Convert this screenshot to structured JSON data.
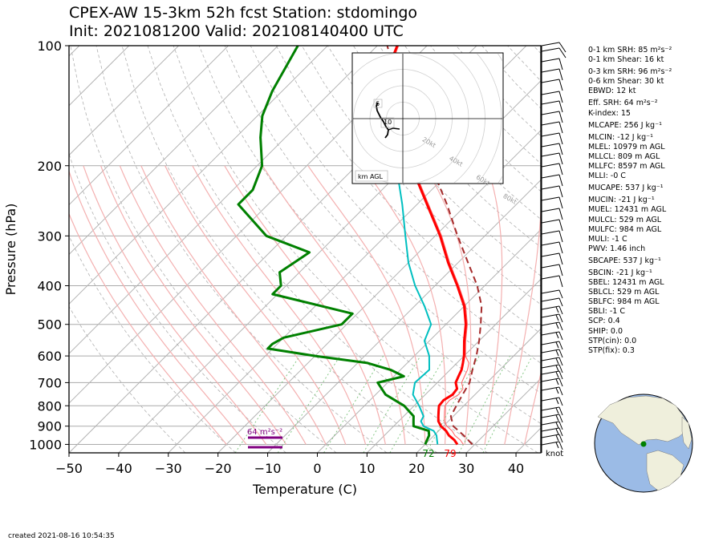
{
  "header": {
    "title_line1": "CPEX-AW 15-3km  52h fcst  Station: stdomingo",
    "title_line2": "Init: 2021081200  Valid: 202108140400 UTC"
  },
  "footer": {
    "created": "created 2021-08-16 10:54:35"
  },
  "chart_data": {
    "type": "skew-t",
    "xlabel": "Temperature (C)",
    "ylabel": "Pressure (hPa)",
    "x_ticks": [
      "−50",
      "−40",
      "−30",
      "−20",
      "−10",
      "0",
      "10",
      "20",
      "30",
      "40"
    ],
    "y_ticks": [
      "100",
      "200",
      "300",
      "400",
      "500",
      "600",
      "700",
      "800",
      "900",
      "1000"
    ],
    "xlim": [
      -50,
      45
    ],
    "ylim": [
      1050,
      100
    ],
    "skew_deg": 45,
    "colors": {
      "temperature": "#ff0000",
      "dewpoint": "#008000",
      "wetbulb": "#00bfc0",
      "parcel": "#a52a2a",
      "srh": "#800080"
    },
    "temperature": [
      [
        1000,
        26.5
      ],
      [
        975,
        25
      ],
      [
        950,
        23
      ],
      [
        925,
        21.5
      ],
      [
        900,
        19.5
      ],
      [
        875,
        18
      ],
      [
        850,
        17
      ],
      [
        825,
        16
      ],
      [
        800,
        15
      ],
      [
        775,
        14.8
      ],
      [
        750,
        15.5
      ],
      [
        725,
        15.2
      ],
      [
        700,
        13.7
      ],
      [
        675,
        13
      ],
      [
        650,
        12.3
      ],
      [
        625,
        11.2
      ],
      [
        600,
        10
      ],
      [
        550,
        7
      ],
      [
        500,
        4
      ],
      [
        450,
        0
      ],
      [
        400,
        -5.5
      ],
      [
        350,
        -12
      ],
      [
        300,
        -19
      ],
      [
        250,
        -28
      ],
      [
        200,
        -39
      ],
      [
        175,
        -46
      ],
      [
        150,
        -53
      ],
      [
        125,
        -60
      ],
      [
        115,
        -63
      ],
      [
        100,
        -66
      ]
    ],
    "dewpoint": [
      [
        1000,
        20
      ],
      [
        975,
        19.5
      ],
      [
        950,
        19
      ],
      [
        925,
        18
      ],
      [
        900,
        14
      ],
      [
        875,
        13
      ],
      [
        850,
        12
      ],
      [
        800,
        8
      ],
      [
        750,
        2
      ],
      [
        700,
        -2
      ],
      [
        675,
        2
      ],
      [
        650,
        -2
      ],
      [
        625,
        -8
      ],
      [
        600,
        -20
      ],
      [
        575,
        -31
      ],
      [
        560,
        -31
      ],
      [
        540,
        -30
      ],
      [
        500,
        -21
      ],
      [
        470,
        -21
      ],
      [
        420,
        -41
      ],
      [
        400,
        -41
      ],
      [
        370,
        -44
      ],
      [
        330,
        -42
      ],
      [
        300,
        -54
      ],
      [
        250,
        -66
      ],
      [
        230,
        -66
      ],
      [
        200,
        -69
      ],
      [
        170,
        -75
      ],
      [
        150,
        -79
      ],
      [
        130,
        -82
      ],
      [
        100,
        -86
      ]
    ],
    "wetbulb": [
      [
        1000,
        22.5
      ],
      [
        975,
        21.5
      ],
      [
        950,
        20.5
      ],
      [
        925,
        19
      ],
      [
        900,
        16
      ],
      [
        875,
        14.5
      ],
      [
        850,
        14
      ],
      [
        800,
        11
      ],
      [
        750,
        7.5
      ],
      [
        700,
        5.5
      ],
      [
        650,
        5.8
      ],
      [
        600,
        3
      ],
      [
        550,
        -1
      ],
      [
        500,
        -3
      ],
      [
        450,
        -8
      ],
      [
        400,
        -14
      ],
      [
        350,
        -20
      ],
      [
        300,
        -26
      ],
      [
        250,
        -33
      ],
      [
        200,
        -42
      ],
      [
        150,
        -54
      ],
      [
        125,
        -60
      ],
      [
        115,
        -63
      ],
      [
        100,
        -66
      ]
    ],
    "parcel": [
      [
        1000,
        29.5
      ],
      [
        950,
        26
      ],
      [
        900,
        22
      ],
      [
        850,
        19.5
      ],
      [
        800,
        18.5
      ],
      [
        750,
        17.5
      ],
      [
        700,
        16.5
      ],
      [
        650,
        14.5
      ],
      [
        600,
        12.5
      ],
      [
        550,
        10
      ],
      [
        500,
        7
      ],
      [
        450,
        3.5
      ],
      [
        400,
        -1.5
      ],
      [
        350,
        -8
      ],
      [
        300,
        -15.5
      ],
      [
        250,
        -24
      ],
      [
        200,
        -35
      ],
      [
        150,
        -50
      ],
      [
        100,
        -68
      ]
    ],
    "surface_labels": {
      "dewpoint_f": "72",
      "temperature_f": "79"
    },
    "srh_annotation": "64 m²s⁻²",
    "barb_unit": "knot",
    "hodograph": {
      "ring_labels": [
        "20kt",
        "40kt",
        "60kt",
        "80kt"
      ],
      "height_labels": [
        "6",
        "10"
      ],
      "legend": "km AGL"
    }
  },
  "params": [
    {
      "text": "0-1 km SRH: 85 m²s⁻²",
      "gap": false
    },
    {
      "text": "0-1 km Shear: 16 kt",
      "gap": false
    },
    {
      "text": "0-3 km SRH: 96 m²s⁻²",
      "gap": true
    },
    {
      "text": "0-6 km Shear: 30 kt",
      "gap": false
    },
    {
      "text": "EBWD: 12 kt",
      "gap": false
    },
    {
      "text": "Eff. SRH: 64 m²s⁻²",
      "gap": true
    },
    {
      "text": "K-index: 15",
      "gap": false
    },
    {
      "text": "MLCAPE: 256 J kg⁻¹",
      "gap": true
    },
    {
      "text": "MLCIN: -12 J kg⁻¹",
      "gap": true
    },
    {
      "text": "MLEL: 10979 m AGL",
      "gap": false
    },
    {
      "text": "MLLCL: 809 m AGL",
      "gap": false
    },
    {
      "text": "MLLFC: 8597 m AGL",
      "gap": false
    },
    {
      "text": "MLLI: -0 C",
      "gap": false
    },
    {
      "text": "MUCAPE: 537 J kg⁻¹",
      "gap": true
    },
    {
      "text": "MUCIN: -21 J kg⁻¹",
      "gap": true
    },
    {
      "text": "MUEL: 12431 m AGL",
      "gap": false
    },
    {
      "text": "MULCL: 529 m AGL",
      "gap": false
    },
    {
      "text": "MULFC: 984 m AGL",
      "gap": false
    },
    {
      "text": "MULI: -1 C",
      "gap": false
    },
    {
      "text": "PWV: 1.46 inch",
      "gap": false
    },
    {
      "text": "SBCAPE: 537 J kg⁻¹",
      "gap": true
    },
    {
      "text": "SBCIN: -21 J kg⁻¹",
      "gap": true
    },
    {
      "text": "SBEL: 12431 m AGL",
      "gap": false
    },
    {
      "text": "SBLCL: 529 m AGL",
      "gap": false
    },
    {
      "text": "SBLFC: 984 m AGL",
      "gap": false
    },
    {
      "text": "SBLI: -1 C",
      "gap": false
    },
    {
      "text": "SCP: 0.4",
      "gap": false
    },
    {
      "text": "SHIP: 0.0",
      "gap": false
    },
    {
      "text": "STP(cin): 0.0",
      "gap": false
    },
    {
      "text": "STP(fix): 0.3",
      "gap": false
    }
  ]
}
